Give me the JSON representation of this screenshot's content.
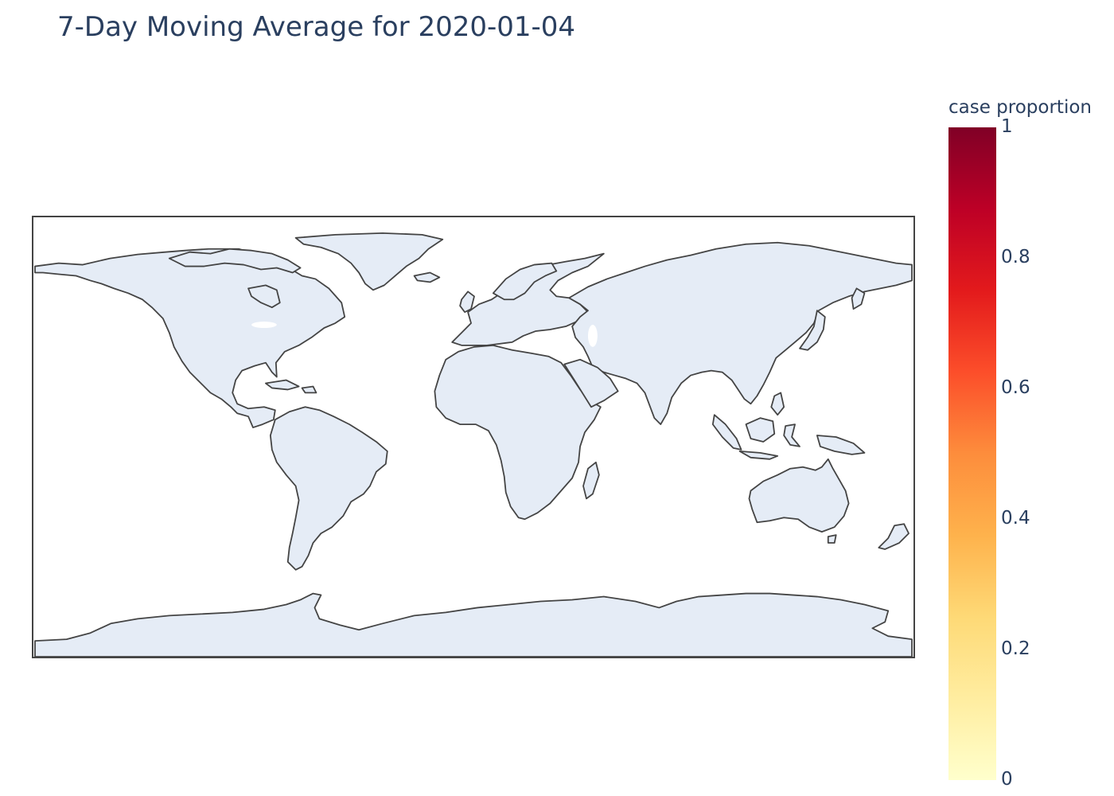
{
  "title": "7-Day Moving Average for 2020-01-04",
  "map": {
    "projection": "equirectangular",
    "land_color": "#e5ecf6",
    "coastline_color": "#444444",
    "highlighted_regions": []
  },
  "colorbar": {
    "title": "case proportion",
    "range": [
      0,
      1
    ],
    "colorscale": [
      "#ffffcc",
      "#ffeda0",
      "#fed976",
      "#feb24c",
      "#fd8d3c",
      "#fc4e2a",
      "#e31a1c",
      "#bd0026",
      "#800026"
    ],
    "ticks": [
      {
        "value": 1,
        "label": "1"
      },
      {
        "value": 0.8,
        "label": "0.8"
      },
      {
        "value": 0.6,
        "label": "0.6"
      },
      {
        "value": 0.4,
        "label": "0.4"
      },
      {
        "value": 0.2,
        "label": "0.2"
      },
      {
        "value": 0,
        "label": "0"
      }
    ]
  }
}
